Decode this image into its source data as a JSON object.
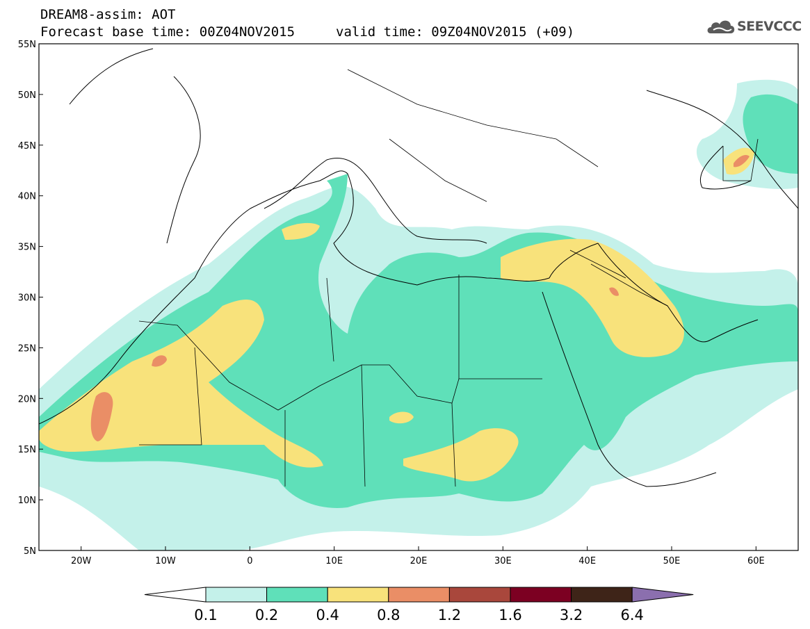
{
  "title": {
    "line1": "DREAM8-assim: AOT",
    "base": "Forecast base time: 00Z04NOV2015",
    "valid": "valid time: 09Z04NOV2015 (+09)"
  },
  "logo": {
    "text": "SEEVCCC",
    "icon": "cloud-icon"
  },
  "map": {
    "lon_range": [
      -25,
      65
    ],
    "lat_range": [
      5,
      55
    ],
    "lat_ticks": [
      "5N",
      "10N",
      "15N",
      "20N",
      "25N",
      "30N",
      "35N",
      "40N",
      "45N",
      "50N",
      "55N"
    ],
    "lon_ticks": [
      "20W",
      "10W",
      "0",
      "10E",
      "20E",
      "30E",
      "40E",
      "50E",
      "60E"
    ]
  },
  "colorbar": {
    "labels": [
      "0.1",
      "0.2",
      "0.4",
      "0.8",
      "1.2",
      "1.6",
      "3.2",
      "6.4"
    ],
    "colors": [
      "#ffffff",
      "#c4f1ea",
      "#5fe0b9",
      "#f8e27b",
      "#ea8e66",
      "#a9473c",
      "#7c0022",
      "#3e2418",
      "#8b6fae"
    ]
  }
}
